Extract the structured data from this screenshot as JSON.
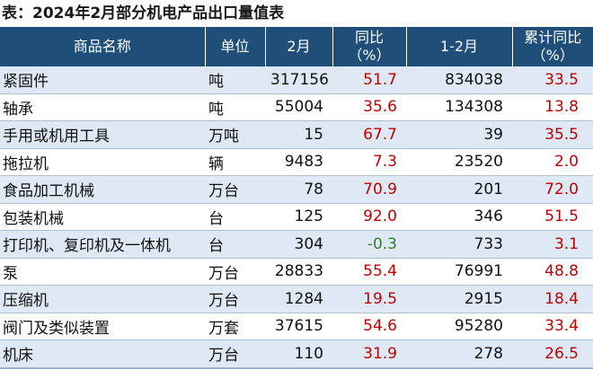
{
  "title": "表：2024年2月部分机电产品出口量值表",
  "headers": {
    "name": "商品名称",
    "unit": "单位",
    "feb": "2月",
    "yoy_line1": "同比",
    "yoy_line2": "（%）",
    "ytd": "1-2月",
    "cum_yoy_line1": "累计同比",
    "cum_yoy_line2": "（%）"
  },
  "rows": [
    {
      "name": "紧固件",
      "unit": "吨",
      "feb": "317156",
      "yoy": "51.7",
      "ytd": "834038",
      "cum_yoy": "33.5"
    },
    {
      "name": "轴承",
      "unit": "吨",
      "feb": "55004",
      "yoy": "35.6",
      "ytd": "134308",
      "cum_yoy": "13.8"
    },
    {
      "name": "手用或机用工具",
      "unit": "万吨",
      "feb": "15",
      "yoy": "67.7",
      "ytd": "39",
      "cum_yoy": "35.5"
    },
    {
      "name": "拖拉机",
      "unit": "辆",
      "feb": "9483",
      "yoy": "7.3",
      "ytd": "23520",
      "cum_yoy": "2.0"
    },
    {
      "name": "食品加工机械",
      "unit": "万台",
      "feb": "78",
      "yoy": "70.9",
      "ytd": "201",
      "cum_yoy": "72.0"
    },
    {
      "name": "包装机械",
      "unit": "台",
      "feb": "125",
      "yoy": "92.0",
      "ytd": "346",
      "cum_yoy": "51.5"
    },
    {
      "name": "打印机、复印机及一体机",
      "unit": "台",
      "feb": "304",
      "yoy": "-0.3",
      "ytd": "733",
      "cum_yoy": "3.1"
    },
    {
      "name": "泵",
      "unit": "万台",
      "feb": "28833",
      "yoy": "55.4",
      "ytd": "76991",
      "cum_yoy": "48.8"
    },
    {
      "name": "压缩机",
      "unit": "万台",
      "feb": "1284",
      "yoy": "19.5",
      "ytd": "2915",
      "cum_yoy": "18.4"
    },
    {
      "name": "阀门及类似装置",
      "unit": "万套",
      "feb": "37615",
      "yoy": "54.6",
      "ytd": "95280",
      "cum_yoy": "33.4"
    },
    {
      "name": "机床",
      "unit": "万台",
      "feb": "110",
      "yoy": "31.9",
      "ytd": "278",
      "cum_yoy": "26.5"
    }
  ],
  "colors": {
    "header_bg": "#1f4e79",
    "positive": "#c00000",
    "negative": "#2e7d32",
    "stripe": "#dfe9f5"
  }
}
